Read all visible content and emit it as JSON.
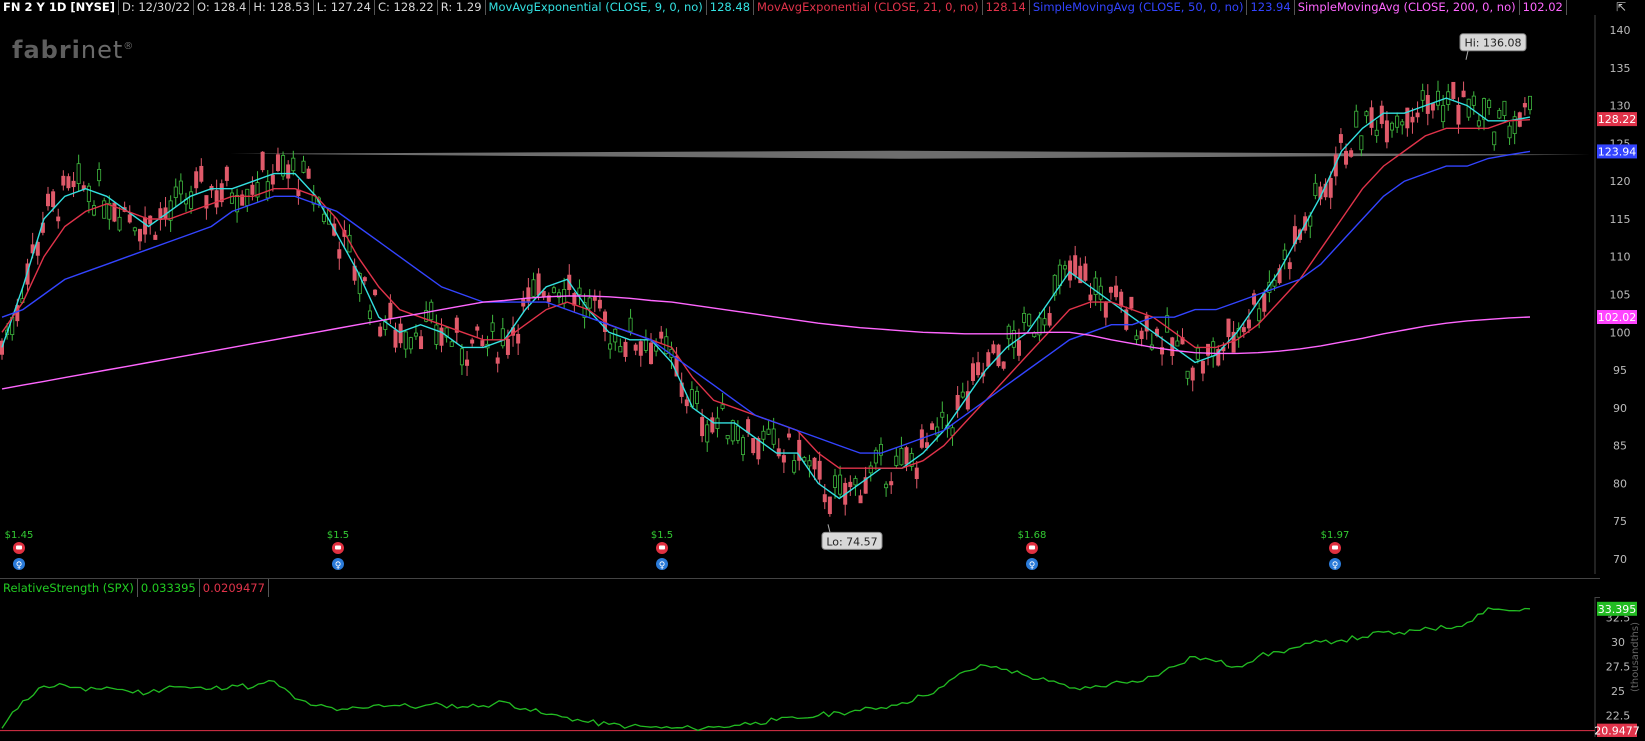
{
  "header": {
    "symbol": "FN 2 Y 1D [NYSE]",
    "date": "D: 12/30/22",
    "open": "O: 128.4",
    "high": "H: 128.53",
    "low": "L: 127.24",
    "close": "C: 128.22",
    "range": "R: 1.29",
    "studies": [
      {
        "label": "MovAvgExponential (CLOSE, 9, 0, no)",
        "value": "128.48",
        "color": "#33e0e0"
      },
      {
        "label": "MovAvgExponential (CLOSE, 21, 0, no)",
        "value": "128.14",
        "color": "#e0334a"
      },
      {
        "label": "SimpleMovingAvg (CLOSE, 50, 0, no)",
        "value": "123.94",
        "color": "#3344ff"
      },
      {
        "label": "SimpleMovingAvg (CLOSE, 200, 0, no)",
        "value": "102.02",
        "color": "#ff66ff"
      }
    ]
  },
  "logo": {
    "bold": "fabri",
    "light": "net",
    "mark": "®"
  },
  "price_axis": {
    "ticks": [
      "140",
      "135",
      "130",
      "125",
      "120",
      "115",
      "110",
      "105",
      "100",
      "95",
      "90",
      "85",
      "80",
      "75",
      "70"
    ],
    "badges": [
      {
        "text": "128.22",
        "value": 128.22,
        "color": "#e0334a"
      },
      {
        "text": "123.94",
        "value": 123.94,
        "color": "#3344ff"
      },
      {
        "text": "102.02",
        "value": 102.02,
        "color": "#ff44ff"
      }
    ]
  },
  "annotations": {
    "hi": "Hi: 136.08",
    "lo": "Lo: 74.57",
    "dividends": [
      "$1.45",
      "$1.5",
      "$1.5",
      "$1.68",
      "$1.97"
    ]
  },
  "rs": {
    "label": "RelativeStrength (SPX)",
    "value1": "0.033395",
    "value2": "0.0209477",
    "ticks": [
      "32.5",
      "30",
      "27.5",
      "25",
      "22.5"
    ],
    "badges": [
      {
        "text": "33.395",
        "value": 33.395,
        "color": "#22bb22"
      },
      {
        "text": "20.9477",
        "value": 20.9477,
        "color": "#e0334a"
      }
    ],
    "side_label": "(thousandths)"
  },
  "chart_data": {
    "type": "line",
    "title": "FN 2 Y 1D [NYSE]",
    "ylim": [
      68,
      142
    ],
    "horizontal_line": 123.5,
    "key_points": {
      "high": 136.08,
      "low": 74.57,
      "last_close": 128.22
    },
    "series": [
      {
        "name": "MovAvgExponential (CLOSE, 9, 0, no)",
        "color": "#33e0e0",
        "values": [
          98,
          106,
          115,
          118,
          119,
          118,
          116,
          114,
          116,
          118,
          119,
          119,
          120,
          121,
          121,
          118,
          113,
          108,
          102,
          100,
          101,
          100,
          98,
          98,
          99,
          103,
          106,
          107,
          103,
          100,
          99,
          99,
          96,
          90,
          88,
          88,
          86,
          84,
          84,
          80,
          78,
          80,
          82,
          82,
          84,
          87,
          91,
          95,
          98,
          100,
          104,
          108,
          106,
          104,
          102,
          100,
          98,
          96,
          97,
          100,
          104,
          108,
          113,
          118,
          124,
          127,
          129,
          129,
          130,
          131,
          130,
          128,
          128,
          128.48
        ]
      },
      {
        "name": "MovAvgExponential (CLOSE, 21, 0, no)",
        "color": "#e0334a",
        "values": [
          100,
          104,
          110,
          114,
          116,
          117,
          116,
          115,
          115,
          116,
          117,
          118,
          118,
          119,
          119,
          118,
          115,
          110,
          106,
          103,
          102,
          101,
          100,
          99,
          99,
          101,
          103,
          104,
          103,
          101,
          100,
          99,
          98,
          94,
          91,
          90,
          89,
          88,
          87,
          84,
          82,
          82,
          82,
          82,
          83,
          85,
          88,
          91,
          94,
          97,
          100,
          103,
          104,
          104,
          103,
          102,
          100,
          98,
          98,
          99,
          101,
          104,
          107,
          111,
          115,
          119,
          122,
          124,
          126,
          127,
          127,
          127,
          128,
          128.14
        ]
      },
      {
        "name": "SimpleMovingAvg (CLOSE, 50, 0, no)",
        "color": "#3344ff",
        "values": [
          102,
          103,
          105,
          107,
          108,
          109,
          110,
          111,
          112,
          113,
          114,
          116,
          117,
          118,
          118,
          117,
          116,
          114,
          112,
          110,
          108,
          106,
          105,
          104,
          104,
          104,
          104,
          103,
          102,
          101,
          100,
          99,
          97,
          95,
          93,
          91,
          89,
          88,
          87,
          86,
          85,
          84,
          84,
          85,
          86,
          87,
          89,
          91,
          93,
          95,
          97,
          99,
          100,
          101,
          101,
          102,
          102,
          103,
          103,
          104,
          105,
          106,
          107,
          109,
          112,
          115,
          118,
          120,
          121,
          122,
          122,
          123,
          123.5,
          123.94
        ]
      },
      {
        "name": "SimpleMovingAvg (CLOSE, 200, 0, no)",
        "color": "#ff66ff",
        "values": [
          92.5,
          93,
          93.5,
          94,
          94.5,
          95,
          95.5,
          96,
          96.5,
          97,
          97.5,
          98,
          98.5,
          99,
          99.5,
          100,
          100.5,
          101,
          101.5,
          102,
          102.5,
          103,
          103.5,
          104,
          104.2,
          104.5,
          104.7,
          104.8,
          104.8,
          104.7,
          104.5,
          104.2,
          104,
          103.6,
          103.2,
          102.8,
          102.4,
          102,
          101.6,
          101.2,
          100.9,
          100.6,
          100.4,
          100.2,
          100,
          99.9,
          99.8,
          99.8,
          99.8,
          99.9,
          100,
          100,
          99.6,
          99,
          98.5,
          98,
          97.6,
          97.3,
          97.2,
          97.2,
          97.3,
          97.5,
          97.8,
          98.2,
          98.7,
          99.2,
          99.8,
          100.3,
          100.8,
          101.2,
          101.5,
          101.7,
          101.9,
          102.02
        ]
      },
      {
        "name": "RelativeStrength (SPX)",
        "color": "#22bb22",
        "values": [
          21.2,
          24,
          25.5,
          25.6,
          25,
          25.4,
          25,
          24.8,
          25.5,
          25.3,
          25.2,
          25.6,
          25.4,
          26,
          24.2,
          23.5,
          23,
          23.3,
          23.6,
          23.5,
          23.4,
          23.6,
          23.4,
          23.5,
          23.9,
          23.2,
          22.6,
          22.3,
          21.8,
          21.6,
          21.4,
          21.3,
          21.2,
          21.2,
          21.3,
          21.5,
          21.8,
          22,
          22.2,
          22.5,
          22.8,
          23,
          23.3,
          23.8,
          24.5,
          25.5,
          27,
          27.6,
          27.2,
          26.5,
          26,
          25.3,
          25.3,
          25.8,
          26,
          26.5,
          27.5,
          28.5,
          28,
          27.5,
          28.5,
          29,
          29.5,
          30,
          30.2,
          30.5,
          31,
          30.8,
          31.5,
          31.4,
          32,
          33.5,
          33.2,
          33.395
        ]
      }
    ]
  }
}
